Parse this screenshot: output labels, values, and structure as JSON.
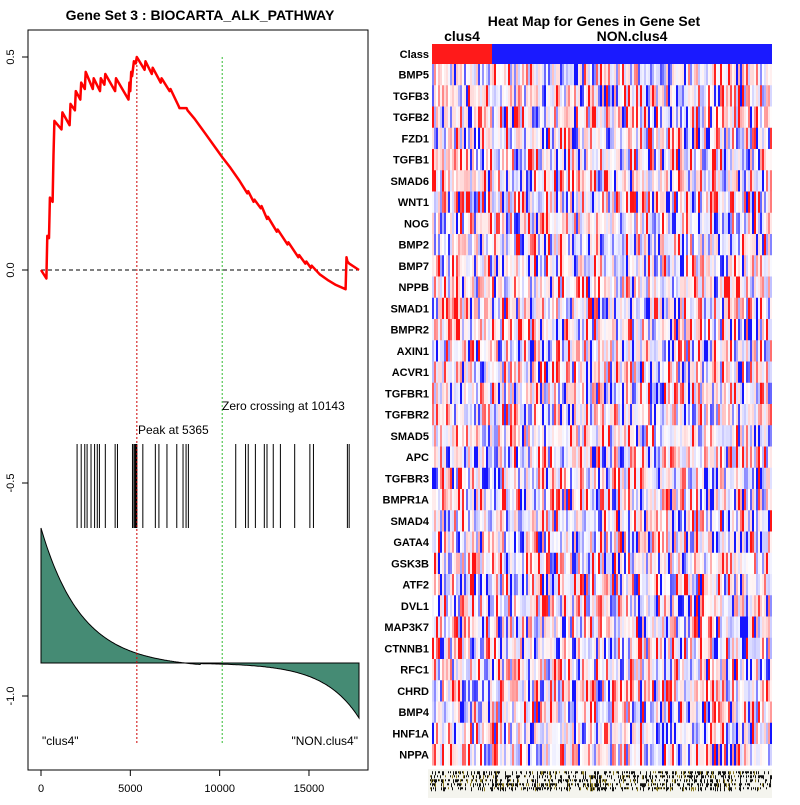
{
  "gsea_plot": {
    "title": "Gene Set  3 : BIOCARTA_ALK_PATHWAY",
    "peak_label": "Peak at 5365",
    "zero_crossing_label": "Zero crossing at 10143",
    "left_class_label": "\"clus4\"",
    "right_class_label": "\"NON.clus4\"",
    "colors": {
      "es_line": "#ff0000",
      "peak_line": "#cc0000",
      "zero_line": "#33bb33",
      "ranked_fill": "#458B74"
    },
    "chart_data": {
      "type": "line",
      "title": "Gene Set  3 : BIOCARTA_ALK_PATHWAY",
      "xlabel": "",
      "ylabel": "",
      "xlim": [
        -500,
        18300
      ],
      "ylim": [
        -1.12,
        0.56
      ],
      "x_ticks": [
        0,
        5000,
        10000,
        15000
      ],
      "x_tick_labels": [
        "0",
        "5000",
        "10000",
        "15000"
      ],
      "y_ticks": [
        0.5,
        0.0,
        -0.5,
        -1.0
      ],
      "y_tick_labels": [
        "0.5",
        "0.0",
        "-0.5",
        "-1.0"
      ],
      "peak_position": 5365,
      "zero_crossing": 10143,
      "running_es": {
        "x": [
          0,
          300,
          350,
          450,
          500,
          650,
          700,
          750,
          1150,
          1200,
          1600,
          1650,
          1900,
          1950,
          2200,
          2250,
          2450,
          2500,
          2900,
          2950,
          3300,
          3350,
          3550,
          3600,
          4150,
          4200,
          4900,
          4950,
          5000,
          5050,
          5100,
          5200,
          5300,
          5365,
          5800,
          5850,
          6200,
          6250,
          6700,
          6750,
          7200,
          7250,
          7700,
          7750,
          8150,
          8200,
          8600,
          9200,
          9800,
          10143,
          10600,
          11100,
          11550,
          11600,
          11900,
          11950,
          12300,
          12350,
          12650,
          12700,
          13200,
          13250,
          13800,
          13850,
          14400,
          14450,
          14800,
          14850,
          15100,
          15150,
          15600,
          16100,
          16500,
          17050,
          17100,
          17150,
          17250,
          17800
        ],
        "y": [
          0.0,
          -0.02,
          0.08,
          0.075,
          0.17,
          0.16,
          0.27,
          0.35,
          0.33,
          0.37,
          0.34,
          0.39,
          0.375,
          0.42,
          0.4,
          0.44,
          0.425,
          0.465,
          0.425,
          0.45,
          0.42,
          0.45,
          0.435,
          0.46,
          0.42,
          0.45,
          0.4,
          0.44,
          0.42,
          0.465,
          0.455,
          0.49,
          0.485,
          0.5,
          0.47,
          0.49,
          0.46,
          0.475,
          0.44,
          0.45,
          0.42,
          0.425,
          0.385,
          0.38,
          0.38,
          0.375,
          0.355,
          0.32,
          0.285,
          0.265,
          0.24,
          0.21,
          0.18,
          0.185,
          0.16,
          0.165,
          0.145,
          0.15,
          0.12,
          0.125,
          0.09,
          0.095,
          0.06,
          0.065,
          0.03,
          0.035,
          0.015,
          0.02,
          0.005,
          0.01,
          -0.01,
          -0.025,
          -0.035,
          -0.045,
          0.03,
          0.02,
          0.015,
          0.0
        ]
      },
      "hit_positions": [
        2020,
        2250,
        2450,
        2580,
        2800,
        3000,
        3150,
        3270,
        3600,
        4150,
        4280,
        5120,
        5200,
        5260,
        5300,
        5340,
        5365,
        5700,
        6400,
        6600,
        7050,
        7600,
        7950,
        8120,
        8250,
        10900,
        11450,
        11600,
        12000,
        12500,
        12650,
        13000,
        13400,
        14200,
        15050,
        15250,
        17150,
        17250
      ]
    }
  },
  "heatmap": {
    "title": "Heat Map for Genes in Gene Set",
    "class_row_label": "Class",
    "groups": [
      {
        "name": "clus4",
        "color": "#ff1a1a"
      },
      {
        "name": "NON.clus4",
        "color": "#1a1aff"
      }
    ],
    "genes": [
      "BMP5",
      "TGFB3",
      "TGFB2",
      "FZD1",
      "TGFB1",
      "SMAD6",
      "WNT1",
      "NOG",
      "BMP2",
      "BMP7",
      "NPPB",
      "SMAD1",
      "BMPR2",
      "AXIN1",
      "ACVR1",
      "TGFBR1",
      "TGFBR2",
      "SMAD5",
      "APC",
      "TGFBR3",
      "BMPR1A",
      "SMAD4",
      "GATA4",
      "GSK3B",
      "ATF2",
      "DVL1",
      "MAP3K7",
      "CTNNB1",
      "RFC1",
      "CHRD",
      "BMP4",
      "HNF1A",
      "NPPA"
    ]
  }
}
